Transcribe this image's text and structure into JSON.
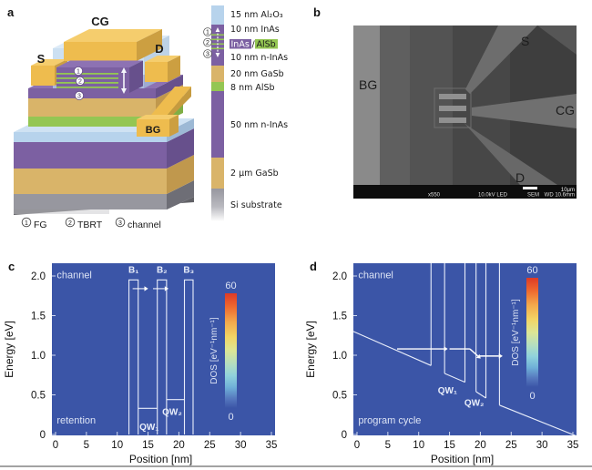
{
  "panels": {
    "a": {
      "label": "a",
      "device": {
        "cg": "CG",
        "s": "S",
        "d": "D",
        "bg": "BG"
      },
      "marks": [
        "1",
        "2",
        "3"
      ],
      "legend": [
        "15 nm Al₂O₃",
        "10 nm InAs",
        "10 nm n-InAs",
        "20 nm GaSb",
        "8 nm AlSb",
        "50 nm n-InAs",
        "2 μm GaSb",
        "Si substrate"
      ],
      "inas_alsb": {
        "inas": "InAs",
        "slash": "/",
        "alsb": "AlSb"
      },
      "footnotes": [
        {
          "n": "1",
          "label": "FG"
        },
        {
          "n": "2",
          "label": "TBRT"
        },
        {
          "n": "3",
          "label": "channel"
        }
      ],
      "colors": {
        "gold": "#eebc4e",
        "purple": "#7c60a2",
        "tan": "#d9b469",
        "green": "#94c653",
        "lightblue": "#b7d3ec",
        "gray": "#97979f"
      }
    },
    "b": {
      "label": "b",
      "annotations": {
        "bg": "BG",
        "s": "S",
        "cg": "CG",
        "d": "D"
      },
      "status_bar": {
        "mag": "x550",
        "voltage": "10.0kV LED",
        "mode": "SEM",
        "wd": "WD 10.6mm",
        "scale": "10μm"
      }
    }
  },
  "chart_data": [
    {
      "panel_label": "c",
      "type": "line",
      "xlabel": "Position [nm]",
      "ylabel": "Energy [eV]",
      "xlim": [
        0,
        35
      ],
      "ylim": [
        0,
        2.17
      ],
      "xticks": [
        0,
        5,
        10,
        15,
        20,
        25,
        30,
        35
      ],
      "yticks": [
        [
          "0",
          0
        ],
        [
          "0.5",
          0.5
        ],
        [
          "1.0",
          1.0
        ],
        [
          "1.5",
          1.5
        ],
        [
          "2.0",
          2.0
        ]
      ],
      "bg_color": "#3b55a7",
      "region_label": {
        "text": "channel",
        "x": 0.2,
        "E": 1.97
      },
      "state_label": {
        "text": "retention",
        "x": 0.2,
        "E": 0.14
      },
      "barriers": [
        {
          "label": "B₁",
          "x0": 11.9,
          "x1": 13.4,
          "top": 1.95
        },
        {
          "label": "B₂",
          "x0": 16.5,
          "x1": 18.0,
          "top": 1.95
        },
        {
          "label": "B₃",
          "x0": 20.9,
          "x1": 22.3,
          "top": 1.95
        }
      ],
      "barrier_label_E": 2.04,
      "well_levels": [
        {
          "label": "QW₁",
          "x0": 13.4,
          "x1": 16.5,
          "E": 0.33,
          "lx": 13.6,
          "lE": 0.06
        },
        {
          "label": "QW₂",
          "x0": 18.0,
          "x1": 20.9,
          "E": 0.44,
          "lx": 17.3,
          "lE": 0.25
        }
      ],
      "arrows": [
        {
          "x0": 12.5,
          "x1": 14.4,
          "E0": 1.84,
          "E1": 1.84,
          "head": true,
          "w": 1.0
        },
        {
          "x0": 15.8,
          "x1": 17.7,
          "E0": 1.84,
          "E1": 1.84,
          "head": true,
          "w": 1.0
        }
      ],
      "colorbar": {
        "label": "DOS [eV⁻¹nm⁻¹]",
        "max_label": "60",
        "min_label": "0",
        "min": 0,
        "max": 60
      }
    },
    {
      "panel_label": "d",
      "type": "line",
      "xlabel": "Position [nm]",
      "ylabel": "Energy [eV]",
      "xlim": [
        0,
        35
      ],
      "ylim": [
        0,
        2.17
      ],
      "xticks": [
        0,
        5,
        10,
        15,
        20,
        25,
        30,
        35
      ],
      "yticks": [
        [
          "0",
          0
        ],
        [
          "0.5",
          0.5
        ],
        [
          "1.0",
          1.0
        ],
        [
          "1.5",
          1.5
        ],
        [
          "2.0",
          2.0
        ]
      ],
      "bg_color": "#3b55a7",
      "region_label": {
        "text": "channel",
        "x": 0.2,
        "E": 1.97
      },
      "state_label": {
        "text": "program cycle",
        "x": 0.2,
        "E": 0.14
      },
      "polylines": [
        [
          [
            -0.6,
            1.3
          ],
          [
            12,
            0.87
          ]
        ],
        [
          [
            12,
            2.3
          ],
          [
            12,
            0.87
          ]
        ],
        [
          [
            14.2,
            2.3
          ],
          [
            14.2,
            0.77
          ]
        ],
        [
          [
            14.2,
            0.77
          ],
          [
            17.5,
            0.66
          ]
        ],
        [
          [
            17.5,
            2.3
          ],
          [
            17.5,
            0.66
          ]
        ],
        [
          [
            19.3,
            2.3
          ],
          [
            19.3,
            0.54
          ]
        ],
        [
          [
            19.3,
            0.54
          ],
          [
            20.9,
            0.46
          ]
        ],
        [
          [
            20.9,
            2.3
          ],
          [
            20.9,
            0.46
          ]
        ],
        [
          [
            23.1,
            2.3
          ],
          [
            23.1,
            0.37
          ]
        ],
        [
          [
            23.1,
            0.37
          ],
          [
            35.6,
            -0.02
          ]
        ]
      ],
      "well_labels": [
        {
          "label": "QW₁",
          "x": 13.1,
          "E": 0.52
        },
        {
          "label": "QW₂",
          "x": 17.4,
          "E": 0.36
        }
      ],
      "arrows": [
        {
          "x0": 6.5,
          "x1": 14.1,
          "E0": 1.08,
          "E1": 1.08,
          "head": true,
          "w": 1.4
        },
        {
          "x0": 15.0,
          "x1": 18.3,
          "E0": 1.08,
          "E1": 1.08,
          "head": false,
          "w": 1.4
        },
        {
          "x0": 18.3,
          "x1": 19.6,
          "E0": 1.08,
          "E1": 0.99,
          "head": true,
          "w": 1.4
        },
        {
          "x0": 19.9,
          "x1": 23.0,
          "E0": 0.99,
          "E1": 0.99,
          "head": true,
          "w": 1.4
        }
      ],
      "colorbar": {
        "label": "DOS [eV⁻¹nm⁻¹]",
        "max_label": "60",
        "min_label": "0",
        "min": 0,
        "max": 60
      }
    }
  ]
}
